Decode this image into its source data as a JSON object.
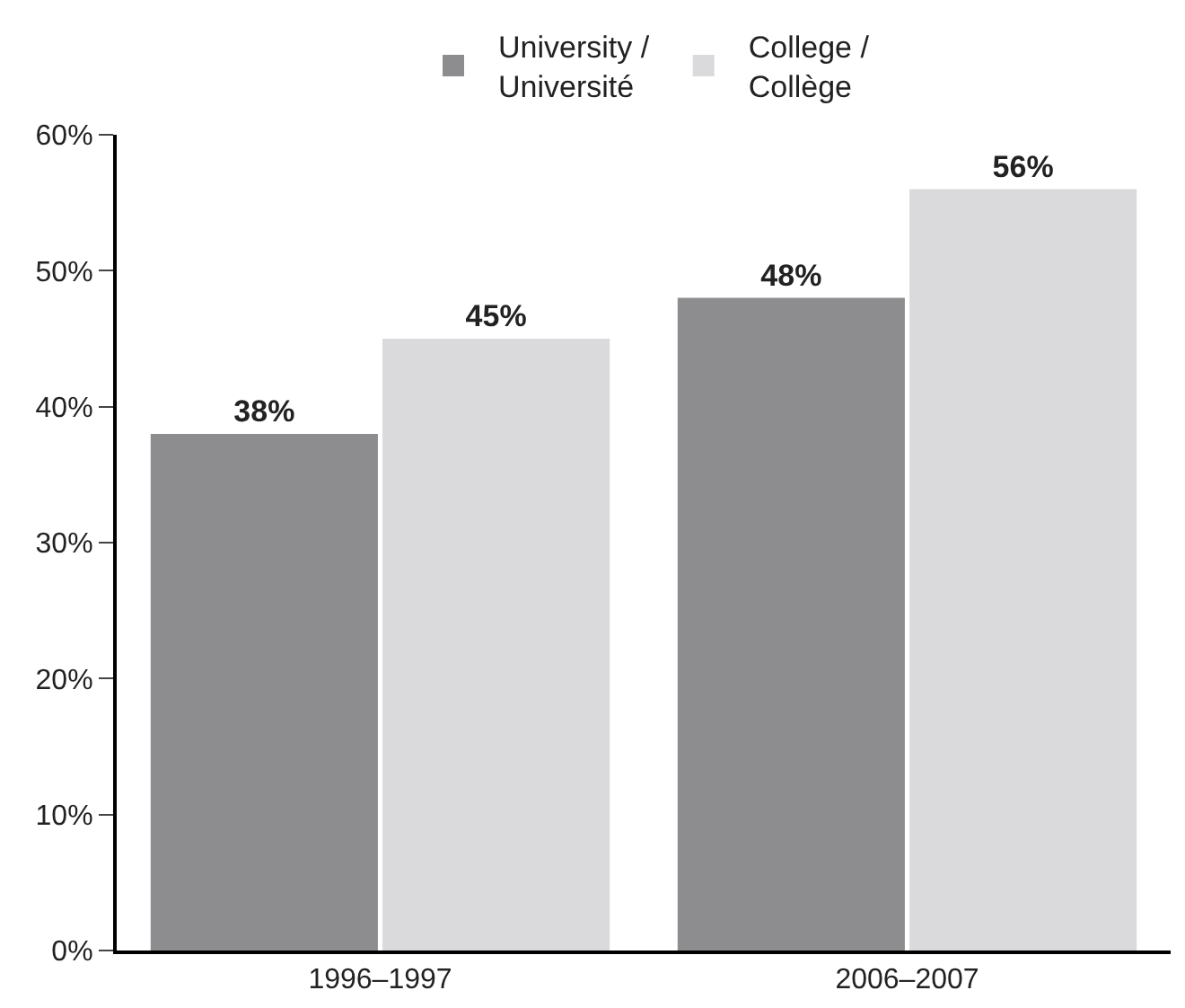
{
  "chart_data": {
    "type": "bar",
    "categories": [
      "1996–1997",
      "2006–2007"
    ],
    "series": [
      {
        "name": "University /\nUniversité",
        "color": "#8d8d8f",
        "values": [
          38,
          48
        ],
        "value_labels": [
          "38%",
          "48%"
        ]
      },
      {
        "name": "College /\nCollège",
        "color": "#dadadc",
        "values": [
          45,
          56
        ],
        "value_labels": [
          "45%",
          "56%"
        ]
      }
    ],
    "ylim": [
      0,
      60
    ],
    "yticks": [
      {
        "value": 0,
        "label": "0%"
      },
      {
        "value": 10,
        "label": "10%"
      },
      {
        "value": 20,
        "label": "20%"
      },
      {
        "value": 30,
        "label": "30%"
      },
      {
        "value": 40,
        "label": "40%"
      },
      {
        "value": 50,
        "label": "50%"
      },
      {
        "value": 60,
        "label": "60%"
      }
    ],
    "legend": "top"
  }
}
